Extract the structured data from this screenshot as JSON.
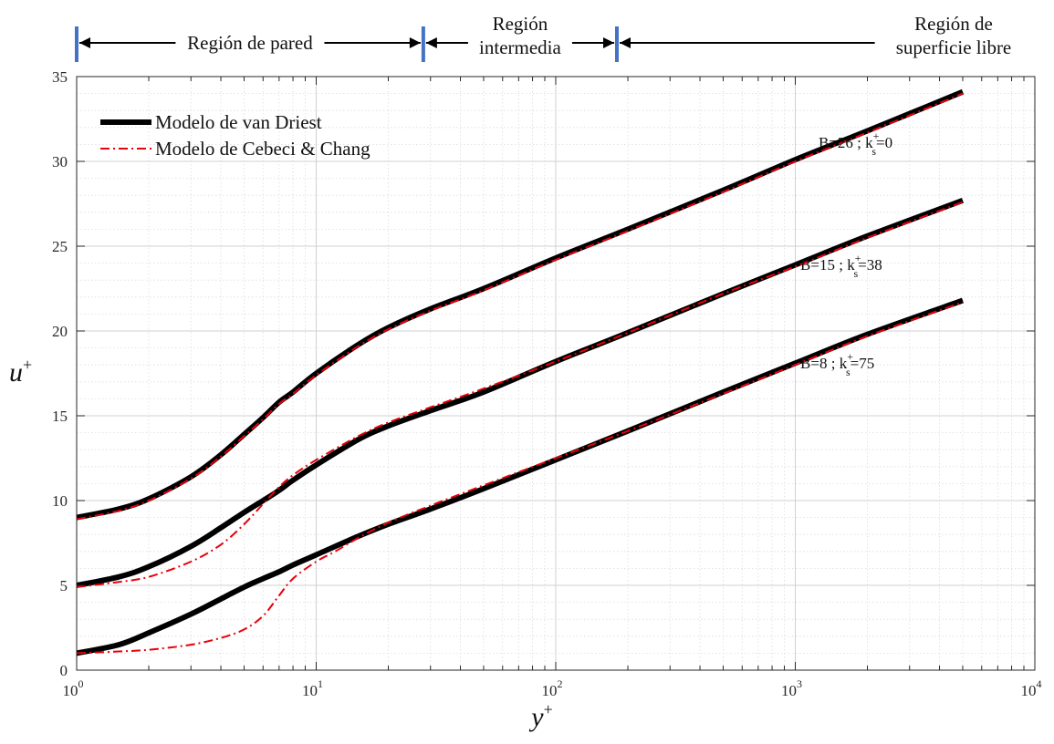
{
  "chart_data": {
    "type": "line",
    "xscale": "log",
    "xlim": [
      1,
      10000
    ],
    "ylim": [
      0,
      35
    ],
    "grid": true,
    "xlabel": "y",
    "xlabel_sup": "+",
    "ylabel": "u",
    "ylabel_sup": "+",
    "yticks": [
      0,
      5,
      10,
      15,
      20,
      25,
      30,
      35
    ],
    "xticks": [
      {
        "value": 1,
        "base": "10",
        "exp": "0"
      },
      {
        "value": 10,
        "base": "10",
        "exp": "1"
      },
      {
        "value": 100,
        "base": "10",
        "exp": "2"
      },
      {
        "value": 1000,
        "base": "10",
        "exp": "3"
      },
      {
        "value": 10000,
        "base": "10",
        "exp": "4"
      }
    ],
    "legend": {
      "position": "top-left",
      "entries": [
        {
          "label": "Modelo de van Driest",
          "color": "#000000",
          "style": "solid-thick"
        },
        {
          "label": "Modelo de Cebeci & Chang",
          "color": "#e8000b",
          "style": "dash-dot"
        }
      ]
    },
    "regions": [
      {
        "label_lines": [
          "Región de pared"
        ],
        "x_from": 1,
        "x_to": 28
      },
      {
        "label_lines": [
          "Región",
          "intermedia"
        ],
        "x_from": 28,
        "x_to": 180
      },
      {
        "label_lines": [
          "Región de",
          "superficie libre"
        ],
        "x_from": 180,
        "x_to": 10000
      }
    ],
    "region_boundaries": [
      1,
      28,
      180
    ],
    "region_marker_color": "#4472c4",
    "curve_labels": [
      {
        "B": "B=26",
        "sep": ";",
        "k": "k",
        "sup": "+",
        "sub": "s",
        "val": "=0",
        "x": 1250,
        "y": 30.8
      },
      {
        "B": "B=15",
        "sep": ";",
        "k": "k",
        "sup": "+",
        "sub": "s",
        "val": "=38",
        "x": 1050,
        "y": 23.6
      },
      {
        "B": "B=8",
        "sep": ";",
        "k": "k",
        "sup": "+",
        "sub": "s",
        "val": "=75",
        "x": 1050,
        "y": 17.8
      }
    ],
    "series": [
      {
        "model": "van Driest",
        "color": "#000000",
        "style": "solid-thick",
        "points": [
          [
            1,
            1.0
          ],
          [
            1.5,
            1.5
          ],
          [
            2,
            2.2
          ],
          [
            3,
            3.3
          ],
          [
            4,
            4.2
          ],
          [
            5,
            4.9
          ],
          [
            6,
            5.4
          ],
          [
            7,
            5.8
          ],
          [
            8,
            6.2
          ],
          [
            10,
            6.8
          ],
          [
            15,
            7.9
          ],
          [
            20,
            8.6
          ],
          [
            30,
            9.5
          ],
          [
            50,
            10.7
          ],
          [
            100,
            12.4
          ],
          [
            200,
            14.1
          ],
          [
            500,
            16.4
          ],
          [
            1000,
            18.1
          ],
          [
            2000,
            19.8
          ],
          [
            5000,
            21.8
          ]
        ]
      },
      {
        "model": "Cebeci & Chang",
        "color": "#e8000b",
        "style": "dash-dot",
        "points": [
          [
            1,
            1.0
          ],
          [
            1.5,
            1.1
          ],
          [
            2,
            1.2
          ],
          [
            3,
            1.5
          ],
          [
            4,
            1.9
          ],
          [
            5,
            2.4
          ],
          [
            6,
            3.2
          ],
          [
            7,
            4.4
          ],
          [
            8,
            5.4
          ],
          [
            10,
            6.4
          ],
          [
            12,
            7.0
          ],
          [
            15,
            7.8
          ],
          [
            20,
            8.7
          ],
          [
            30,
            9.7
          ],
          [
            50,
            10.9
          ],
          [
            100,
            12.5
          ],
          [
            200,
            14.1
          ],
          [
            500,
            16.3
          ],
          [
            1000,
            18.0
          ],
          [
            2000,
            19.7
          ],
          [
            5000,
            21.7
          ]
        ]
      },
      {
        "model": "van Driest",
        "color": "#000000",
        "style": "solid-thick",
        "points": [
          [
            1,
            5.0
          ],
          [
            1.5,
            5.5
          ],
          [
            2,
            6.1
          ],
          [
            3,
            7.3
          ],
          [
            4,
            8.4
          ],
          [
            5,
            9.3
          ],
          [
            6,
            10.0
          ],
          [
            7,
            10.6
          ],
          [
            8,
            11.2
          ],
          [
            10,
            12.1
          ],
          [
            15,
            13.6
          ],
          [
            20,
            14.4
          ],
          [
            30,
            15.3
          ],
          [
            50,
            16.4
          ],
          [
            100,
            18.2
          ],
          [
            200,
            19.9
          ],
          [
            500,
            22.2
          ],
          [
            1000,
            23.9
          ],
          [
            2000,
            25.6
          ],
          [
            5000,
            27.7
          ]
        ]
      },
      {
        "model": "Cebeci & Chang",
        "color": "#e8000b",
        "style": "dash-dot",
        "points": [
          [
            1,
            4.9
          ],
          [
            1.5,
            5.2
          ],
          [
            2,
            5.5
          ],
          [
            3,
            6.4
          ],
          [
            4,
            7.4
          ],
          [
            5,
            8.6
          ],
          [
            6,
            9.8
          ],
          [
            7,
            10.8
          ],
          [
            8,
            11.5
          ],
          [
            10,
            12.4
          ],
          [
            15,
            13.8
          ],
          [
            20,
            14.6
          ],
          [
            30,
            15.5
          ],
          [
            50,
            16.6
          ],
          [
            100,
            18.2
          ],
          [
            200,
            19.9
          ],
          [
            500,
            22.2
          ],
          [
            1000,
            23.8
          ],
          [
            2000,
            25.5
          ],
          [
            5000,
            27.6
          ]
        ]
      },
      {
        "model": "van Driest",
        "color": "#000000",
        "style": "solid-thick",
        "points": [
          [
            1,
            9.0
          ],
          [
            1.5,
            9.5
          ],
          [
            2,
            10.1
          ],
          [
            3,
            11.4
          ],
          [
            4,
            12.7
          ],
          [
            5,
            13.9
          ],
          [
            6,
            14.9
          ],
          [
            7,
            15.8
          ],
          [
            8,
            16.4
          ],
          [
            10,
            17.5
          ],
          [
            15,
            19.2
          ],
          [
            20,
            20.2
          ],
          [
            30,
            21.3
          ],
          [
            50,
            22.5
          ],
          [
            100,
            24.3
          ],
          [
            200,
            26.0
          ],
          [
            500,
            28.3
          ],
          [
            1000,
            30.1
          ],
          [
            2000,
            31.8
          ],
          [
            5000,
            34.1
          ]
        ]
      },
      {
        "model": "Cebeci & Chang",
        "color": "#e8000b",
        "style": "dash-dot",
        "points": [
          [
            1,
            8.9
          ],
          [
            1.5,
            9.4
          ],
          [
            2,
            10.0
          ],
          [
            3,
            11.3
          ],
          [
            4,
            12.6
          ],
          [
            5,
            13.8
          ],
          [
            6,
            14.8
          ],
          [
            7,
            15.7
          ],
          [
            8,
            16.3
          ],
          [
            10,
            17.4
          ],
          [
            15,
            19.1
          ],
          [
            20,
            20.1
          ],
          [
            30,
            21.2
          ],
          [
            50,
            22.4
          ],
          [
            100,
            24.2
          ],
          [
            200,
            25.9
          ],
          [
            500,
            28.2
          ],
          [
            1000,
            30.0
          ],
          [
            2000,
            31.7
          ],
          [
            5000,
            34.0
          ]
        ]
      }
    ]
  }
}
